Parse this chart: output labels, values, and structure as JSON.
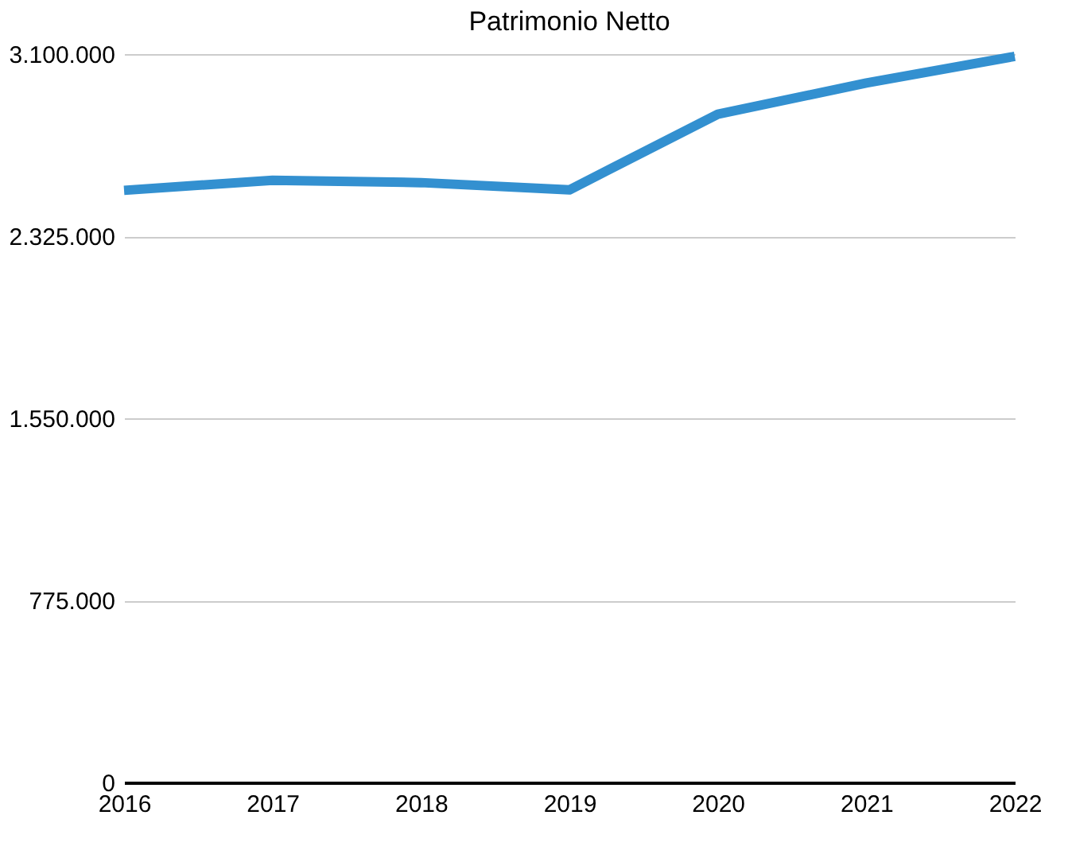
{
  "chart_data": {
    "type": "line",
    "title": "Patrimonio Netto",
    "categories": [
      "2016",
      "2017",
      "2018",
      "2019",
      "2020",
      "2021",
      "2022"
    ],
    "series": [
      {
        "color": "#3390d0",
        "values": [
          2520000,
          2563000,
          2553000,
          2522000,
          2844000,
          2977000,
          3090000
        ]
      }
    ],
    "ylim": [
      0,
      3100000
    ],
    "yticks": [
      {
        "value": 0,
        "label": "0"
      },
      {
        "value": 775000,
        "label": "775.000"
      },
      {
        "value": 1550000,
        "label": "1.550.000"
      },
      {
        "value": 2325000,
        "label": "2.325.000"
      },
      {
        "value": 3100000,
        "label": "3.100.000"
      }
    ],
    "grid": "y",
    "legend": false,
    "marker": "none",
    "line_style": "solid"
  }
}
